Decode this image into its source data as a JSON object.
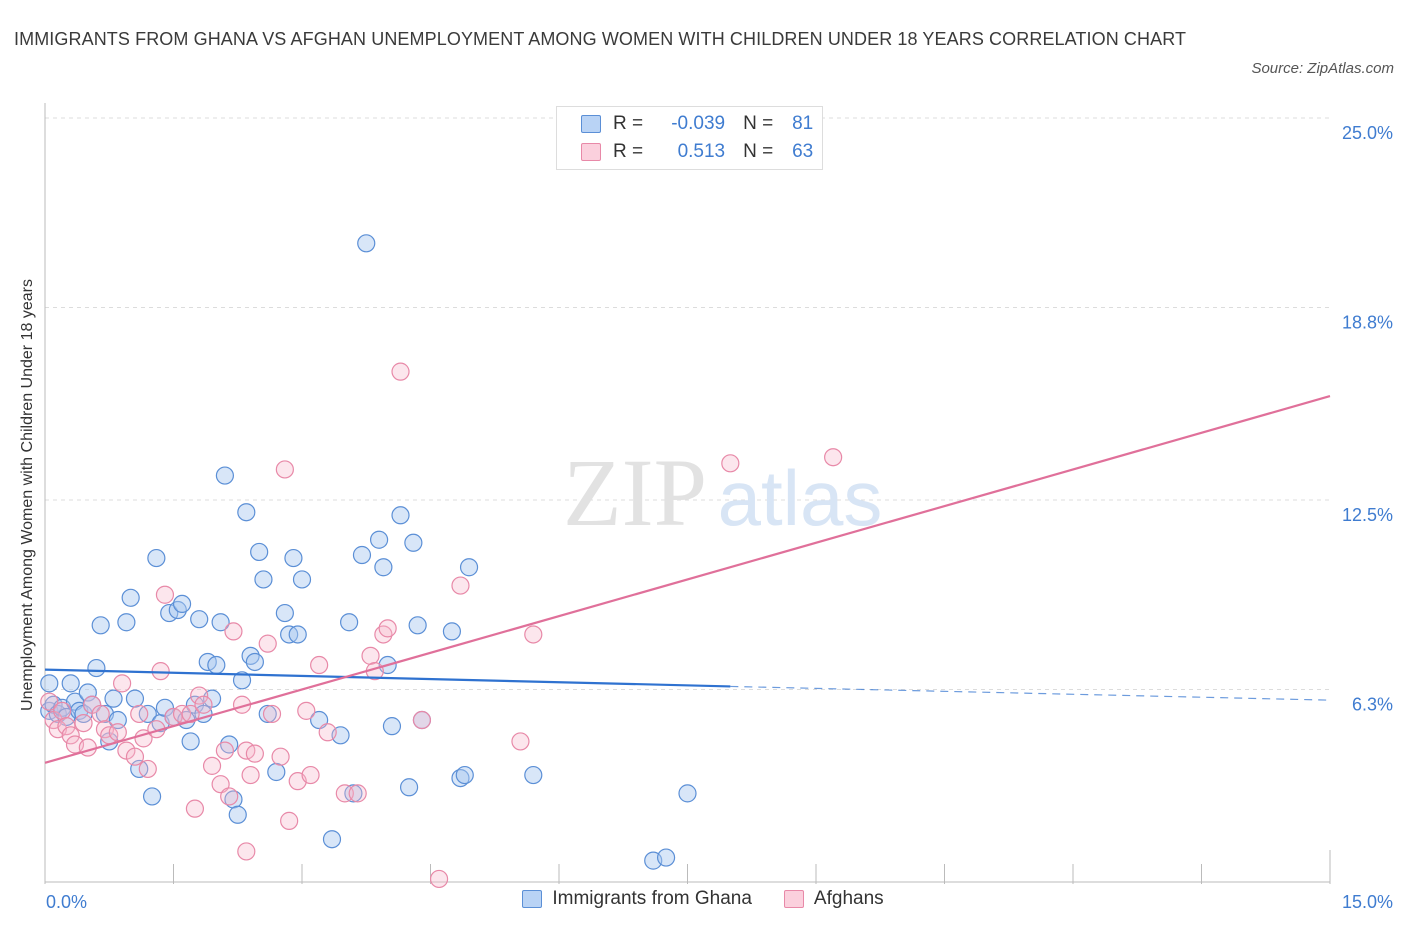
{
  "title": "IMMIGRANTS FROM GHANA VS AFGHAN UNEMPLOYMENT AMONG WOMEN WITH CHILDREN UNDER 18 YEARS CORRELATION CHART",
  "source": "Source: ZipAtlas.com",
  "watermark": {
    "zip": "ZIP",
    "atlas": "atlas"
  },
  "legend": {
    "series1": {
      "r_label": "R =",
      "r_value": "-0.039",
      "n_label": "N =",
      "n_value": "81"
    },
    "series2": {
      "r_label": "R =",
      "r_value": "0.513",
      "n_label": "N =",
      "n_value": "63"
    }
  },
  "colors": {
    "blue_fill": "#a9c8f0",
    "blue_stroke": "#5b8fd6",
    "blue_line": "#2f72d0",
    "pink_fill": "#f7b8cb",
    "pink_stroke": "#e889a8",
    "pink_line": "#e0709a",
    "tick_text": "#3f7cd0"
  },
  "chart_data": {
    "type": "scatter",
    "title": "IMMIGRANTS FROM GHANA VS AFGHAN UNEMPLOYMENT AMONG WOMEN WITH CHILDREN UNDER 18 YEARS CORRELATION CHART",
    "xlabel": "",
    "ylabel": "Unemployment Among Women with Children Under 18 years",
    "xlim": [
      0,
      15
    ],
    "ylim": [
      0,
      25
    ],
    "x_tick_labels": [
      "0.0%",
      "15.0%"
    ],
    "y_ticks": [
      6.3,
      12.5,
      18.8,
      25.0
    ],
    "y_tick_labels": [
      "6.3%",
      "12.5%",
      "18.8%",
      "25.0%"
    ],
    "grid": true,
    "legend_position": "top-center",
    "series": [
      {
        "name": "Immigrants from Ghana",
        "color": "#a9c8f0",
        "trend": {
          "x": [
            0,
            8.0
          ],
          "y": [
            6.95,
            6.4
          ],
          "dashed_to": [
            15.0,
            5.95
          ]
        },
        "points": [
          [
            0.05,
            5.6
          ],
          [
            0.1,
            5.8
          ],
          [
            0.15,
            5.5
          ],
          [
            0.2,
            5.7
          ],
          [
            0.25,
            5.4
          ],
          [
            0.3,
            6.5
          ],
          [
            0.35,
            5.9
          ],
          [
            0.4,
            5.6
          ],
          [
            0.45,
            5.5
          ],
          [
            0.5,
            6.2
          ],
          [
            0.55,
            5.8
          ],
          [
            0.6,
            7.0
          ],
          [
            0.65,
            8.4
          ],
          [
            0.7,
            5.5
          ],
          [
            0.75,
            4.6
          ],
          [
            0.8,
            6.0
          ],
          [
            0.85,
            5.3
          ],
          [
            0.95,
            8.5
          ],
          [
            1.0,
            9.3
          ],
          [
            1.05,
            6.0
          ],
          [
            1.1,
            3.7
          ],
          [
            1.2,
            5.5
          ],
          [
            1.25,
            2.8
          ],
          [
            1.3,
            10.6
          ],
          [
            1.35,
            5.2
          ],
          [
            1.4,
            5.7
          ],
          [
            1.45,
            8.8
          ],
          [
            1.5,
            5.4
          ],
          [
            1.55,
            8.9
          ],
          [
            1.6,
            9.1
          ],
          [
            1.65,
            5.3
          ],
          [
            1.7,
            4.6
          ],
          [
            1.75,
            5.8
          ],
          [
            1.8,
            8.6
          ],
          [
            1.85,
            5.5
          ],
          [
            1.9,
            7.2
          ],
          [
            1.95,
            6.0
          ],
          [
            2.0,
            7.1
          ],
          [
            2.05,
            8.5
          ],
          [
            2.1,
            13.3
          ],
          [
            2.15,
            4.5
          ],
          [
            2.2,
            2.7
          ],
          [
            2.3,
            6.6
          ],
          [
            2.35,
            12.1
          ],
          [
            2.25,
            2.2
          ],
          [
            2.4,
            7.4
          ],
          [
            2.45,
            7.2
          ],
          [
            2.5,
            10.8
          ],
          [
            2.55,
            9.9
          ],
          [
            2.6,
            5.5
          ],
          [
            2.7,
            3.6
          ],
          [
            2.8,
            8.8
          ],
          [
            2.85,
            8.1
          ],
          [
            2.9,
            10.6
          ],
          [
            2.95,
            8.1
          ],
          [
            3.0,
            9.9
          ],
          [
            3.2,
            5.3
          ],
          [
            3.35,
            1.4
          ],
          [
            3.45,
            4.8
          ],
          [
            3.55,
            8.5
          ],
          [
            3.6,
            2.9
          ],
          [
            3.7,
            10.7
          ],
          [
            3.75,
            20.9
          ],
          [
            3.9,
            11.2
          ],
          [
            3.95,
            10.3
          ],
          [
            4.0,
            7.1
          ],
          [
            4.05,
            5.1
          ],
          [
            4.15,
            12.0
          ],
          [
            4.25,
            3.1
          ],
          [
            4.3,
            11.1
          ],
          [
            4.35,
            8.4
          ],
          [
            4.4,
            5.3
          ],
          [
            4.75,
            8.2
          ],
          [
            4.85,
            3.4
          ],
          [
            4.9,
            3.5
          ],
          [
            4.95,
            10.3
          ],
          [
            5.7,
            3.5
          ],
          [
            7.1,
            0.7
          ],
          [
            7.25,
            0.8
          ],
          [
            7.5,
            2.9
          ],
          [
            0.05,
            6.5
          ]
        ]
      },
      {
        "name": "Afghans",
        "color": "#f7b8cb",
        "trend": {
          "x": [
            0,
            15.0
          ],
          "y": [
            3.9,
            15.9
          ]
        },
        "points": [
          [
            0.05,
            5.9
          ],
          [
            0.1,
            5.3
          ],
          [
            0.15,
            5.0
          ],
          [
            0.2,
            5.6
          ],
          [
            0.25,
            5.1
          ],
          [
            0.3,
            4.8
          ],
          [
            0.35,
            4.5
          ],
          [
            0.45,
            5.2
          ],
          [
            0.5,
            4.4
          ],
          [
            0.55,
            5.8
          ],
          [
            0.65,
            5.5
          ],
          [
            0.7,
            5.0
          ],
          [
            0.75,
            4.8
          ],
          [
            0.85,
            4.9
          ],
          [
            0.9,
            6.5
          ],
          [
            0.95,
            4.3
          ],
          [
            1.05,
            4.1
          ],
          [
            1.1,
            5.5
          ],
          [
            1.15,
            4.7
          ],
          [
            1.2,
            3.7
          ],
          [
            1.3,
            5.0
          ],
          [
            1.35,
            6.9
          ],
          [
            1.4,
            9.4
          ],
          [
            1.5,
            5.4
          ],
          [
            1.6,
            5.5
          ],
          [
            1.7,
            5.5
          ],
          [
            1.75,
            2.4
          ],
          [
            1.8,
            6.1
          ],
          [
            1.85,
            5.8
          ],
          [
            1.95,
            3.8
          ],
          [
            2.05,
            3.2
          ],
          [
            2.1,
            4.3
          ],
          [
            2.15,
            2.8
          ],
          [
            2.2,
            8.2
          ],
          [
            2.3,
            5.8
          ],
          [
            2.35,
            4.3
          ],
          [
            2.4,
            3.5
          ],
          [
            2.45,
            4.2
          ],
          [
            2.6,
            7.8
          ],
          [
            2.65,
            5.5
          ],
          [
            2.75,
            4.1
          ],
          [
            2.8,
            13.5
          ],
          [
            2.85,
            2.0
          ],
          [
            2.95,
            3.3
          ],
          [
            3.05,
            5.6
          ],
          [
            3.1,
            3.5
          ],
          [
            3.2,
            7.1
          ],
          [
            3.3,
            4.9
          ],
          [
            3.5,
            2.9
          ],
          [
            3.65,
            2.9
          ],
          [
            3.8,
            7.4
          ],
          [
            3.85,
            6.9
          ],
          [
            3.95,
            8.1
          ],
          [
            4.0,
            8.3
          ],
          [
            4.15,
            16.7
          ],
          [
            4.4,
            5.3
          ],
          [
            4.6,
            0.1
          ],
          [
            4.85,
            9.7
          ],
          [
            5.55,
            4.6
          ],
          [
            5.7,
            8.1
          ],
          [
            8.0,
            13.7
          ],
          [
            9.2,
            13.9
          ],
          [
            2.35,
            1.0
          ]
        ]
      }
    ]
  }
}
